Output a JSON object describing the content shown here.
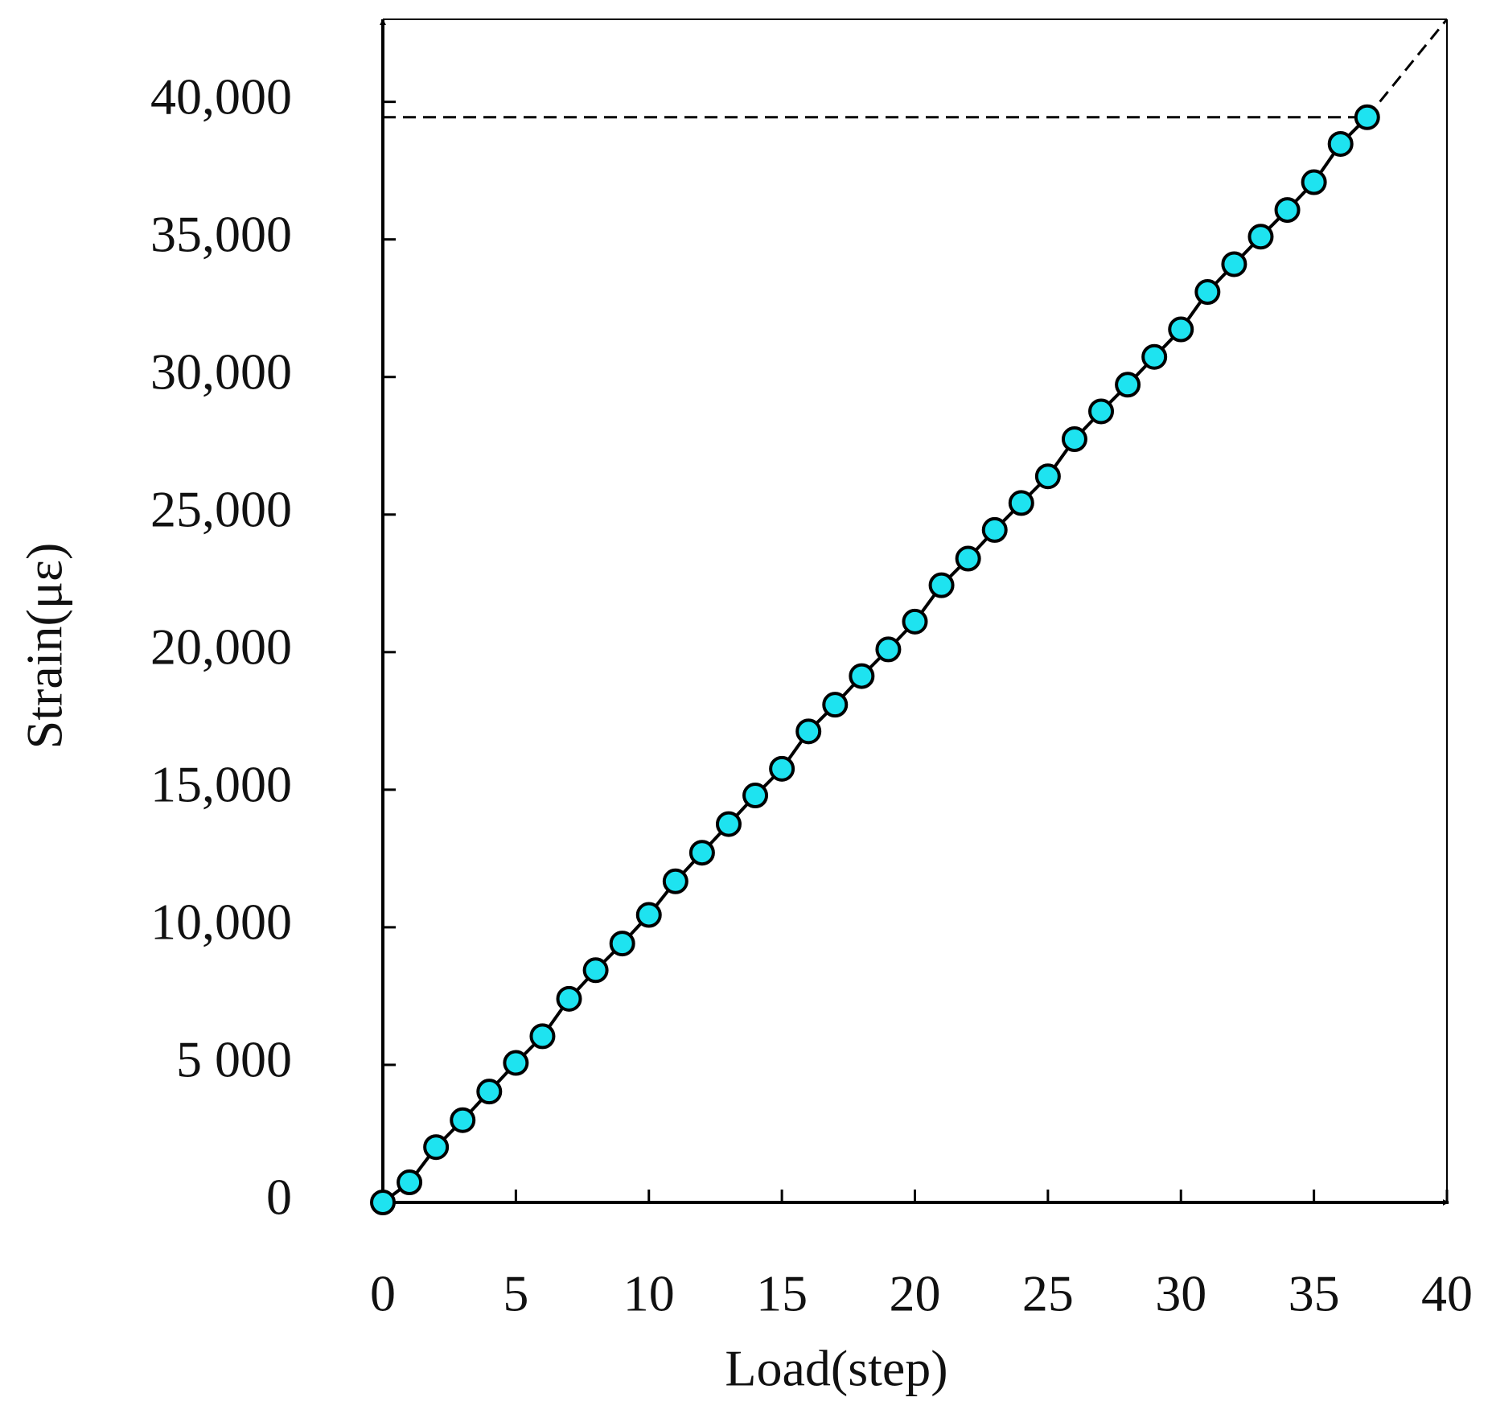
{
  "chart_data": {
    "type": "line",
    "x_label": "Load(step)",
    "y_label": "Strain(με)",
    "x": [
      0,
      1,
      2,
      3,
      4,
      5,
      6,
      7,
      8,
      9,
      10,
      11,
      12,
      13,
      14,
      15,
      16,
      17,
      18,
      19,
      20,
      21,
      22,
      23,
      24,
      25,
      26,
      27,
      28,
      29,
      30,
      31,
      32,
      33,
      34,
      35,
      36,
      37
    ],
    "series": [
      {
        "color": "#1ee3f0",
        "values": [
          0,
          730,
          2010,
          2990,
          4030,
          5070,
          6040,
          7400,
          8440,
          9410,
          10450,
          11670,
          12710,
          13750,
          14790,
          15760,
          17120,
          18090,
          19130,
          20100,
          21110,
          22430,
          23400,
          24440,
          25420,
          26390,
          27740,
          28750,
          29720,
          30730,
          31730,
          33090,
          34100,
          35100,
          36070,
          37080,
          38470,
          39440
        ]
      }
    ],
    "reference_line": 39440,
    "xlim": [
      0,
      40
    ],
    "xticks": [
      0,
      5,
      10,
      15,
      20,
      25,
      30,
      35,
      40
    ],
    "ylim": [
      0,
      43000
    ],
    "yticks": [
      0,
      {
        "value": 5000,
        "label": "5 000"
      },
      {
        "value": 10000,
        "label": "10,000"
      },
      {
        "value": 15000,
        "label": "15,000"
      },
      {
        "value": 20000,
        "label": "20,000"
      },
      {
        "value": 25000,
        "label": "25,000"
      },
      {
        "value": 30000,
        "label": "30,000"
      },
      {
        "value": 35000,
        "label": "35,000"
      },
      {
        "value": 40000,
        "label": "40,000"
      }
    ],
    "grid": false
  }
}
